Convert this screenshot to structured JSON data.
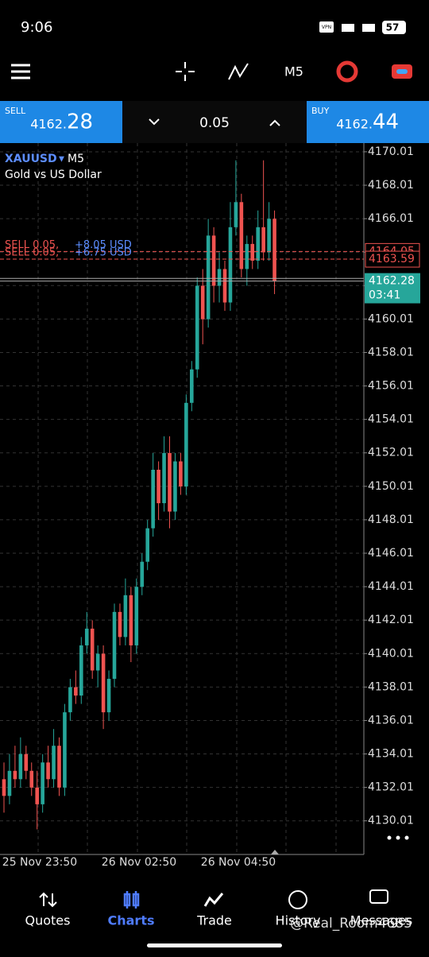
{
  "status_bar": {
    "time": "9:06",
    "badge": "VPN",
    "battery": "57"
  },
  "toolbar": {
    "timeframe": "M5"
  },
  "trade_panel": {
    "sell_label": "SELL",
    "sell_price_main": "4162.",
    "sell_price_big": "28",
    "volume": "0.05",
    "buy_label": "BUY",
    "buy_price_main": "4162.",
    "buy_price_big": "44"
  },
  "chart_data": {
    "type": "candlestick",
    "symbol": "XAUUSD",
    "timeframe": "M5",
    "description": "Gold vs US Dollar",
    "ylim": [
      4128,
      4170.53
    ],
    "yticks": [
      4170.01,
      4168.01,
      4166.01,
      4164.01,
      4162.01,
      4160.01,
      4158.01,
      4156.01,
      4154.01,
      4152.01,
      4150.01,
      4148.01,
      4146.01,
      4144.01,
      4142.01,
      4140.01,
      4138.01,
      4136.01,
      4134.01,
      4132.01,
      4130.01
    ],
    "x_labels": [
      "25 Nov 23:50",
      "26 Nov 02:50",
      "26 Nov 04:50"
    ],
    "up_color": "#26a69a",
    "down_color": "#ef5350",
    "candles": [
      [
        4132.5,
        4133.5,
        4130.5,
        4131.5
      ],
      [
        4131.5,
        4134,
        4131,
        4133
      ],
      [
        4133,
        4134.5,
        4132,
        4132.5
      ],
      [
        4132.5,
        4135,
        4132,
        4134
      ],
      [
        4134,
        4134.5,
        4132.5,
        4133
      ],
      [
        4133,
        4133.5,
        4131.5,
        4132
      ],
      [
        4132,
        4133,
        4129.5,
        4131
      ],
      [
        4131,
        4134,
        4130.5,
        4133.5
      ],
      [
        4133.5,
        4134.5,
        4132,
        4132.5
      ],
      [
        4132.5,
        4135.5,
        4132,
        4134.5
      ],
      [
        4134.5,
        4135,
        4131.5,
        4132
      ],
      [
        4132,
        4137,
        4131.5,
        4136.5
      ],
      [
        4136.5,
        4138.5,
        4136,
        4138
      ],
      [
        4138,
        4139,
        4137,
        4137.5
      ],
      [
        4137.5,
        4141,
        4137,
        4140.5
      ],
      [
        4140.5,
        4142.5,
        4140,
        4141.5
      ],
      [
        4141.5,
        4142,
        4138.5,
        4139
      ],
      [
        4139,
        4140.5,
        4138,
        4140
      ],
      [
        4140,
        4140.5,
        4135.5,
        4136.5
      ],
      [
        4136.5,
        4139,
        4136,
        4138.5
      ],
      [
        4138.5,
        4143,
        4138,
        4142.5
      ],
      [
        4142.5,
        4143,
        4140.5,
        4141
      ],
      [
        4141,
        4144.5,
        4140.5,
        4143.5
      ],
      [
        4143.5,
        4144,
        4139.5,
        4140.5
      ],
      [
        4140.5,
        4144.5,
        4140,
        4144
      ],
      [
        4144,
        4146,
        4143.5,
        4145.5
      ],
      [
        4145.5,
        4148,
        4145,
        4147.5
      ],
      [
        4147.5,
        4152,
        4147,
        4151
      ],
      [
        4151,
        4151.5,
        4148,
        4149
      ],
      [
        4149,
        4153,
        4148.5,
        4152
      ],
      [
        4152,
        4153,
        4147.5,
        4148.5
      ],
      [
        4148.5,
        4152,
        4148,
        4151.5
      ],
      [
        4151.5,
        4152,
        4149.5,
        4150
      ],
      [
        4150,
        4155.5,
        4149.5,
        4155
      ],
      [
        4155,
        4157.5,
        4154.5,
        4157
      ],
      [
        4157,
        4162.5,
        4156.5,
        4162
      ],
      [
        4162,
        4163,
        4158.5,
        4160
      ],
      [
        4160,
        4166,
        4159.5,
        4165
      ],
      [
        4165,
        4165.5,
        4161,
        4162
      ],
      [
        4162,
        4164,
        4161,
        4163
      ],
      [
        4163,
        4163.5,
        4160.5,
        4161
      ],
      [
        4161,
        4167,
        4160.5,
        4165.5
      ],
      [
        4165.5,
        4169.5,
        4165,
        4167
      ],
      [
        4167,
        4167.5,
        4162.5,
        4163
      ],
      [
        4163,
        4165,
        4162,
        4164.5
      ],
      [
        4164.5,
        4165,
        4163,
        4163.5
      ],
      [
        4163.5,
        4166.5,
        4163,
        4165.5
      ],
      [
        4165.5,
        4169.5,
        4163.5,
        4164
      ],
      [
        4164,
        4167,
        4163.5,
        4166
      ],
      [
        4166,
        4166.5,
        4161.5,
        4162.28
      ]
    ],
    "positions": [
      {
        "label": "SELL 0.05,",
        "profit": "+8.05 USD",
        "price": 4164.05
      },
      {
        "label": "SELL 0.05,",
        "profit": "+6.75 USD",
        "price": 4163.59
      }
    ],
    "bid": 4162.28,
    "ask": 4162.44,
    "timer": "03:41"
  },
  "nav": [
    "Quotes",
    "Charts",
    "Trade",
    "History",
    "Messages"
  ],
  "watermark": "@Real_Room4685"
}
